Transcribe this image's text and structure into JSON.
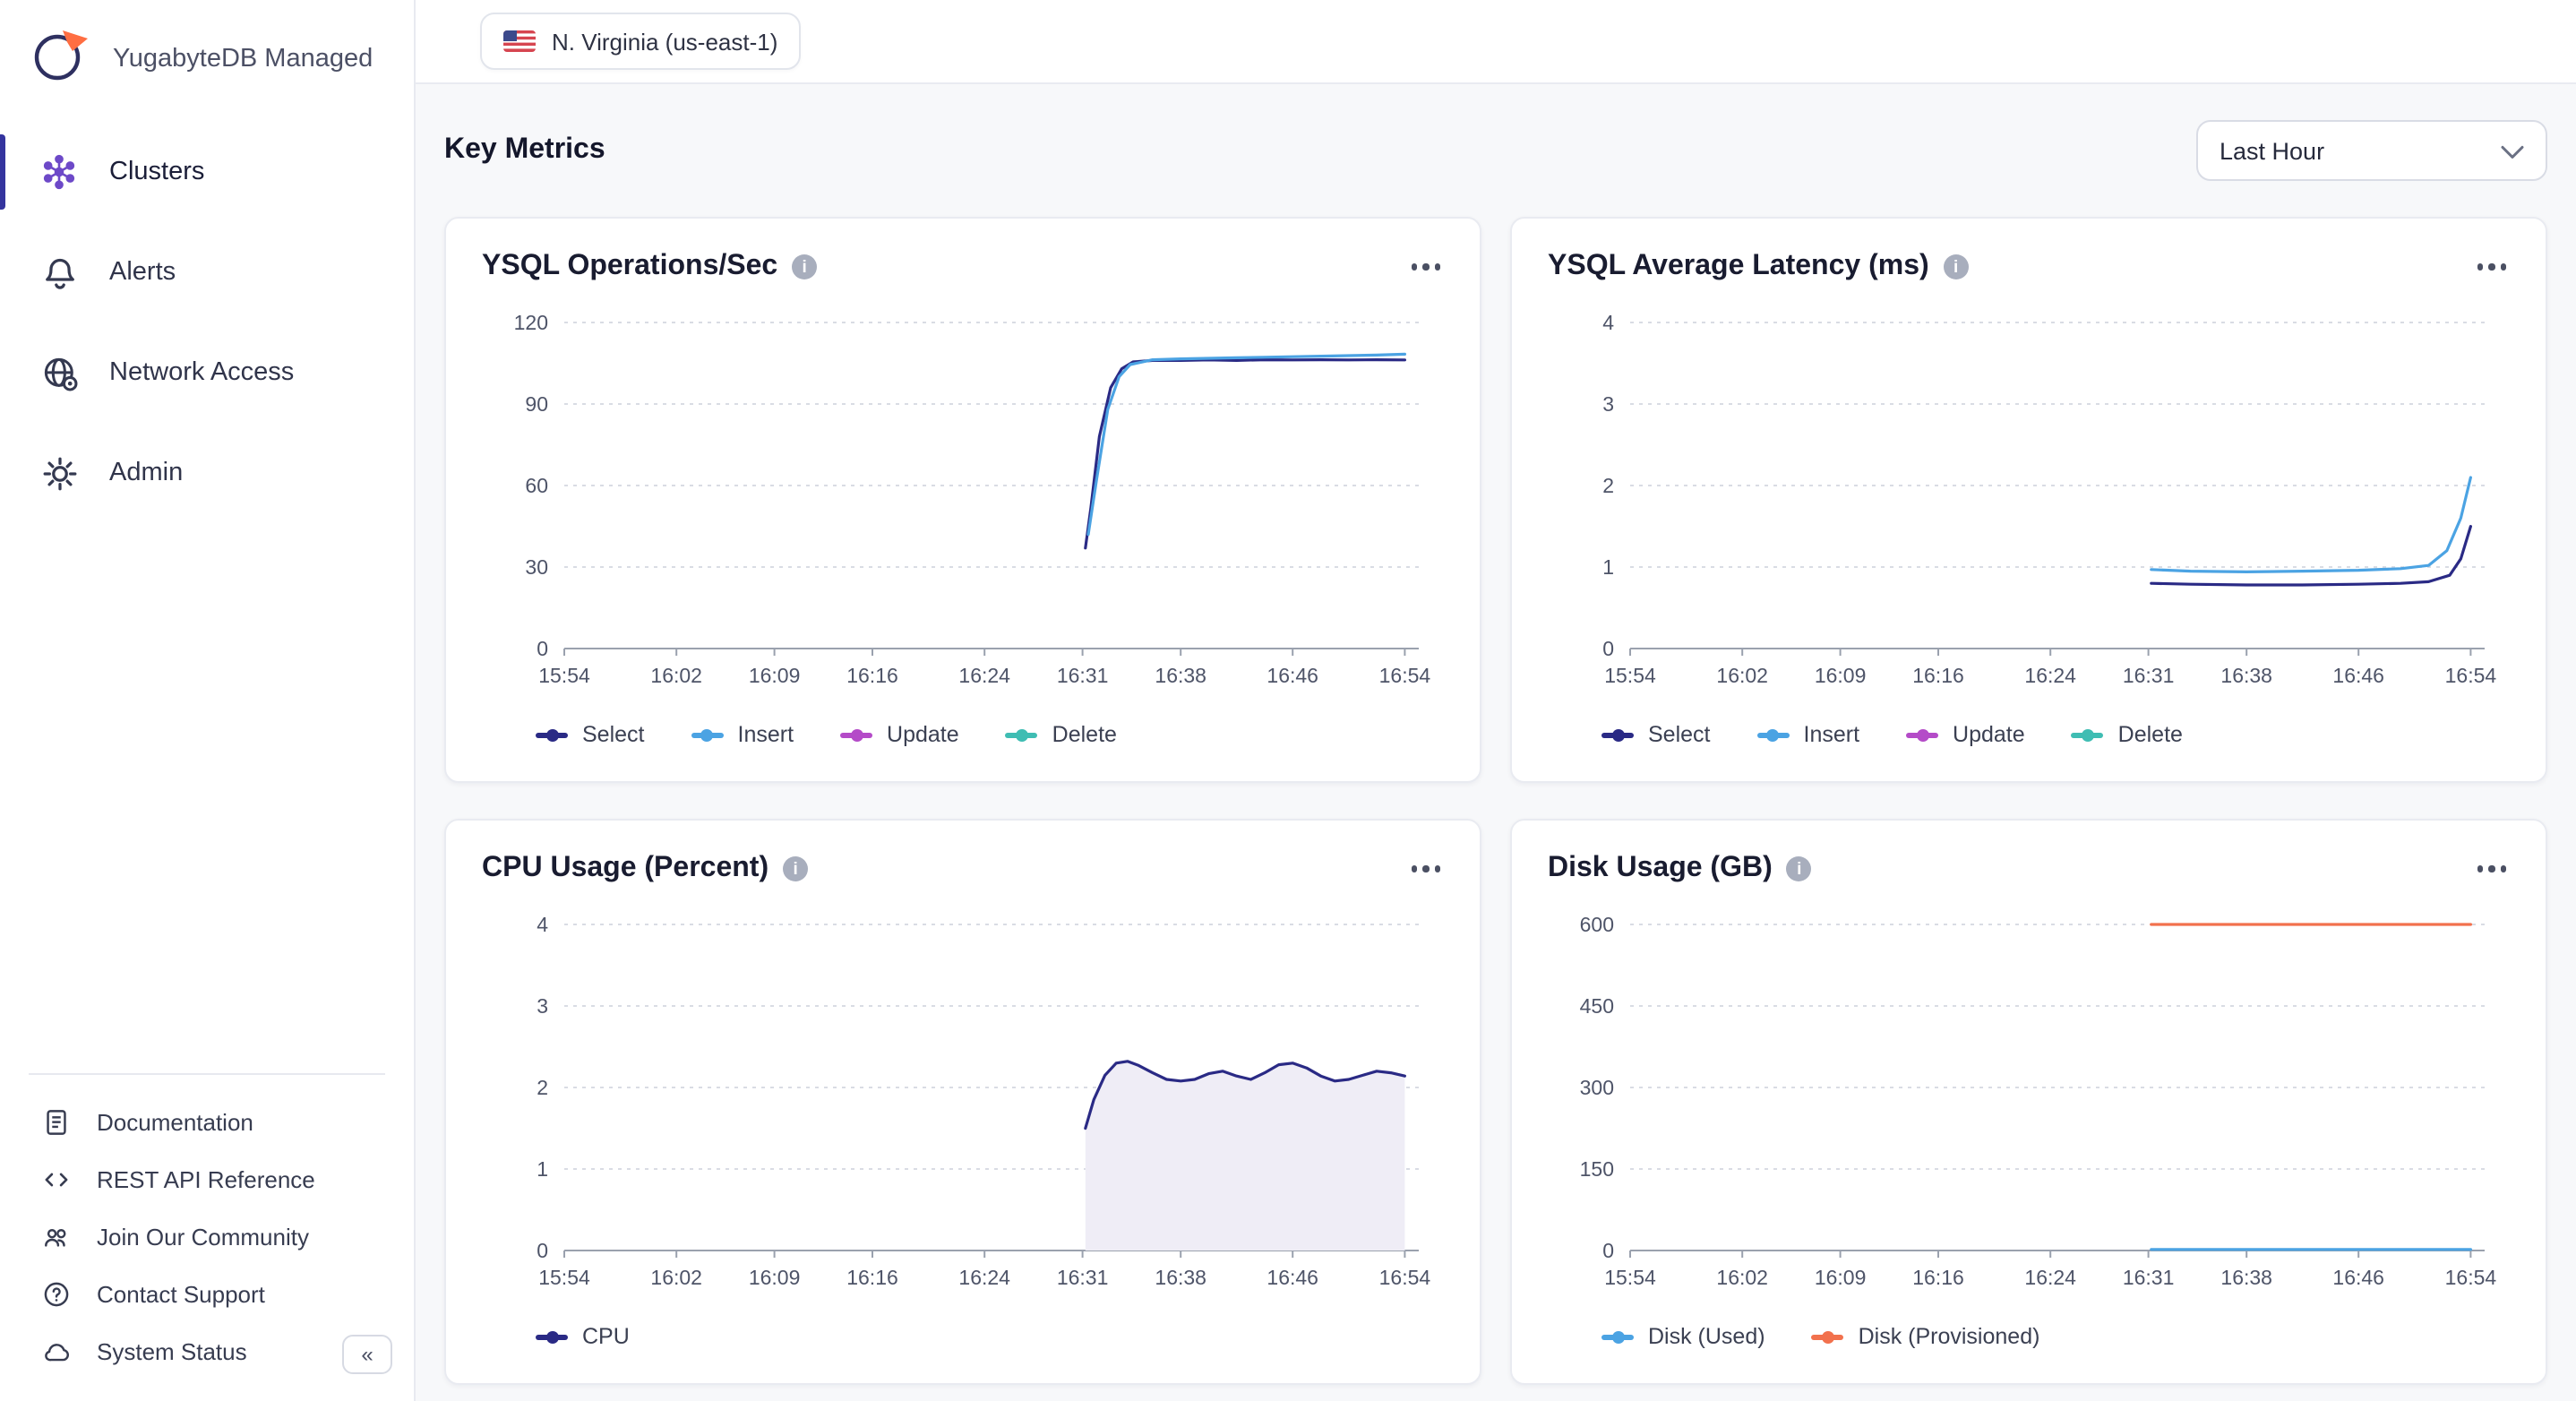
{
  "app": {
    "brand": "YugabyteDB Managed"
  },
  "sidebar": {
    "items": [
      {
        "label": "Clusters",
        "icon": "clusters-icon",
        "active": true
      },
      {
        "label": "Alerts",
        "icon": "bell-icon",
        "active": false
      },
      {
        "label": "Network Access",
        "icon": "globe-gear-icon",
        "active": false
      },
      {
        "label": "Admin",
        "icon": "gear-icon",
        "active": false
      }
    ],
    "footer_items": [
      {
        "label": "Documentation",
        "icon": "document-icon"
      },
      {
        "label": "REST API Reference",
        "icon": "code-icon"
      },
      {
        "label": "Join Our Community",
        "icon": "community-icon"
      },
      {
        "label": "Contact Support",
        "icon": "question-circle-icon"
      },
      {
        "label": "System Status",
        "icon": "cloud-icon"
      }
    ],
    "collapse_icon": "«"
  },
  "topbar": {
    "region": "N. Virginia (us-east-1)",
    "flag": "us-flag-icon"
  },
  "metrics": {
    "heading": "Key Metrics",
    "time_range": "Last Hour"
  },
  "colors": {
    "select": "#2a2a85",
    "insert": "#4ba3e3",
    "update": "#b44bc8",
    "delete": "#3fbdb3",
    "cpu": "#2a2a85",
    "disk_used": "#4ba3e3",
    "disk_provisioned": "#f2714d",
    "accent": "#34349e"
  },
  "chart_data": [
    {
      "type": "line",
      "title": "YSQL Operations/Sec",
      "x_ticks": [
        "15:54",
        "16:02",
        "16:09",
        "16:16",
        "16:24",
        "16:31",
        "16:38",
        "16:46",
        "16:54"
      ],
      "x_tick_values": [
        0,
        8,
        15,
        22,
        30,
        37,
        44,
        52,
        60
      ],
      "xlim": [
        0,
        61
      ],
      "ylim": [
        0,
        120
      ],
      "y_ticks": [
        0,
        30,
        60,
        90,
        120
      ],
      "grid": true,
      "legend_position": "bottom",
      "series": [
        {
          "name": "Select",
          "color": "#2a2a85",
          "points": [
            [
              37.2,
              37
            ],
            [
              37.6,
              52
            ],
            [
              38.2,
              78
            ],
            [
              39,
              96
            ],
            [
              39.8,
              103
            ],
            [
              40.6,
              105.5
            ],
            [
              42,
              106
            ],
            [
              44,
              106
            ],
            [
              46,
              106.2
            ],
            [
              48,
              106
            ],
            [
              50,
              106.3
            ],
            [
              52,
              106.2
            ],
            [
              54,
              106.3
            ],
            [
              56,
              106.2
            ],
            [
              58,
              106.3
            ],
            [
              60,
              106.2
            ]
          ]
        },
        {
          "name": "Insert",
          "color": "#4ba3e3",
          "points": [
            [
              37.4,
              42
            ],
            [
              38,
              62
            ],
            [
              38.8,
              88
            ],
            [
              39.6,
              100
            ],
            [
              40.4,
              104.5
            ],
            [
              42,
              106.3
            ],
            [
              44,
              106.6
            ],
            [
              46,
              106.8
            ],
            [
              48,
              107
            ],
            [
              50,
              107.2
            ],
            [
              52,
              107.4
            ],
            [
              54,
              107.6
            ],
            [
              56,
              107.8
            ],
            [
              58,
              108
            ],
            [
              60,
              108.3
            ]
          ]
        },
        {
          "name": "Update",
          "color": "#b44bc8",
          "points": []
        },
        {
          "name": "Delete",
          "color": "#3fbdb3",
          "points": []
        }
      ]
    },
    {
      "type": "line",
      "title": "YSQL Average Latency (ms)",
      "x_ticks": [
        "15:54",
        "16:02",
        "16:09",
        "16:16",
        "16:24",
        "16:31",
        "16:38",
        "16:46",
        "16:54"
      ],
      "x_tick_values": [
        0,
        8,
        15,
        22,
        30,
        37,
        44,
        52,
        60
      ],
      "xlim": [
        0,
        61
      ],
      "ylim": [
        0,
        4
      ],
      "y_ticks": [
        0,
        1,
        2,
        3,
        4
      ],
      "grid": true,
      "legend_position": "bottom",
      "series": [
        {
          "name": "Select",
          "color": "#2a2a85",
          "points": [
            [
              37.2,
              0.8
            ],
            [
              40,
              0.79
            ],
            [
              44,
              0.78
            ],
            [
              48,
              0.78
            ],
            [
              52,
              0.79
            ],
            [
              55,
              0.8
            ],
            [
              57,
              0.82
            ],
            [
              58.5,
              0.9
            ],
            [
              59.3,
              1.1
            ],
            [
              60,
              1.5
            ]
          ]
        },
        {
          "name": "Insert",
          "color": "#4ba3e3",
          "points": [
            [
              37.2,
              0.97
            ],
            [
              40,
              0.95
            ],
            [
              44,
              0.94
            ],
            [
              48,
              0.95
            ],
            [
              52,
              0.96
            ],
            [
              55,
              0.98
            ],
            [
              57,
              1.02
            ],
            [
              58.3,
              1.2
            ],
            [
              59.3,
              1.6
            ],
            [
              60,
              2.1
            ]
          ]
        },
        {
          "name": "Update",
          "color": "#b44bc8",
          "points": []
        },
        {
          "name": "Delete",
          "color": "#3fbdb3",
          "points": []
        }
      ]
    },
    {
      "type": "area",
      "title": "CPU Usage (Percent)",
      "x_ticks": [
        "15:54",
        "16:02",
        "16:09",
        "16:16",
        "16:24",
        "16:31",
        "16:38",
        "16:46",
        "16:54"
      ],
      "x_tick_values": [
        0,
        8,
        15,
        22,
        30,
        37,
        44,
        52,
        60
      ],
      "xlim": [
        0,
        61
      ],
      "ylim": [
        0,
        4
      ],
      "y_ticks": [
        0,
        1,
        2,
        3,
        4
      ],
      "grid": true,
      "legend_position": "bottom",
      "series": [
        {
          "name": "CPU",
          "color": "#2a2a85",
          "fill": "#efedf6",
          "points": [
            [
              37.2,
              1.5
            ],
            [
              37.8,
              1.85
            ],
            [
              38.6,
              2.15
            ],
            [
              39.4,
              2.3
            ],
            [
              40.2,
              2.32
            ],
            [
              41,
              2.27
            ],
            [
              42,
              2.18
            ],
            [
              43,
              2.1
            ],
            [
              44,
              2.08
            ],
            [
              45,
              2.1
            ],
            [
              46,
              2.17
            ],
            [
              47,
              2.2
            ],
            [
              48,
              2.14
            ],
            [
              49,
              2.1
            ],
            [
              50,
              2.18
            ],
            [
              51,
              2.28
            ],
            [
              52,
              2.3
            ],
            [
              53,
              2.24
            ],
            [
              54,
              2.14
            ],
            [
              55,
              2.08
            ],
            [
              56,
              2.1
            ],
            [
              57,
              2.15
            ],
            [
              58,
              2.2
            ],
            [
              59,
              2.18
            ],
            [
              60,
              2.14
            ]
          ]
        }
      ]
    },
    {
      "type": "line",
      "title": "Disk Usage (GB)",
      "x_ticks": [
        "15:54",
        "16:02",
        "16:09",
        "16:16",
        "16:24",
        "16:31",
        "16:38",
        "16:46",
        "16:54"
      ],
      "x_tick_values": [
        0,
        8,
        15,
        22,
        30,
        37,
        44,
        52,
        60
      ],
      "xlim": [
        0,
        61
      ],
      "ylim": [
        0,
        600
      ],
      "y_ticks": [
        0,
        150,
        300,
        450,
        600
      ],
      "grid": true,
      "legend_position": "bottom",
      "series": [
        {
          "name": "Disk (Used)",
          "color": "#4ba3e3",
          "points": [
            [
              37.2,
              2
            ],
            [
              60,
              2
            ]
          ]
        },
        {
          "name": "Disk (Provisioned)",
          "color": "#f2714d",
          "points": [
            [
              37.2,
              600
            ],
            [
              60,
              600
            ]
          ]
        }
      ]
    }
  ]
}
